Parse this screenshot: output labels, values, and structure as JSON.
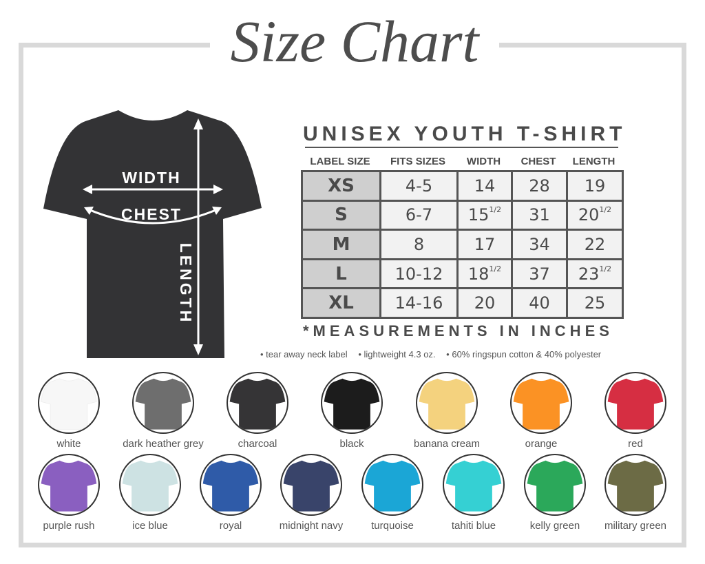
{
  "title": "Size Chart",
  "shirt_labels": {
    "width": "WIDTH",
    "chest": "CHEST",
    "length": "LENGTH"
  },
  "table": {
    "title": "UNISEX YOUTH T-SHIRT",
    "headers": [
      "LABEL SIZE",
      "FITS SIZES",
      "WIDTH",
      "CHEST",
      "LENGTH"
    ],
    "rows": [
      [
        {
          "v": "XS"
        },
        {
          "v": "4-5"
        },
        {
          "v": "14"
        },
        {
          "v": "28"
        },
        {
          "v": "19"
        }
      ],
      [
        {
          "v": "S"
        },
        {
          "v": "6-7"
        },
        {
          "v": "15",
          "frac": "1/2"
        },
        {
          "v": "31"
        },
        {
          "v": "20",
          "frac": "1/2"
        }
      ],
      [
        {
          "v": "M"
        },
        {
          "v": "8"
        },
        {
          "v": "17"
        },
        {
          "v": "34"
        },
        {
          "v": "22"
        }
      ],
      [
        {
          "v": "L"
        },
        {
          "v": "10-12"
        },
        {
          "v": "18",
          "frac": "1/2"
        },
        {
          "v": "37"
        },
        {
          "v": "23",
          "frac": "1/2"
        }
      ],
      [
        {
          "v": "XL"
        },
        {
          "v": "14-16"
        },
        {
          "v": "20"
        },
        {
          "v": "40"
        },
        {
          "v": "25"
        }
      ]
    ],
    "note": "*MEASUREMENTS IN INCHES"
  },
  "features": [
    "• tear away neck label",
    "• lightweight 4.3 oz.",
    "• 60% ringspun cotton & 40% polyester"
  ],
  "colors": {
    "frame": "#d9d9d9",
    "text": "#4a4a4a",
    "label_cell": "#cfcfcf",
    "cell": "#f2f2f2",
    "main_shirt": "#333335"
  },
  "swatches": [
    {
      "name": "white",
      "color": "#f7f7f7"
    },
    {
      "name": "dark heather grey",
      "color": "#6e6e6e"
    },
    {
      "name": "charcoal",
      "color": "#353436"
    },
    {
      "name": "black",
      "color": "#1c1c1c"
    },
    {
      "name": "banana cream",
      "color": "#f4d27e"
    },
    {
      "name": "orange",
      "color": "#fb9224"
    },
    {
      "name": "red",
      "color": "#d62e42"
    },
    {
      "name": "purple rush",
      "color": "#8a5fc0"
    },
    {
      "name": "ice blue",
      "color": "#cde2e3"
    },
    {
      "name": "royal",
      "color": "#2f5ba8"
    },
    {
      "name": "midnight navy",
      "color": "#39446a"
    },
    {
      "name": "turquoise",
      "color": "#1ba6d6"
    },
    {
      "name": "tahiti blue",
      "color": "#35d0d3"
    },
    {
      "name": "kelly green",
      "color": "#2ba85a"
    },
    {
      "name": "military green",
      "color": "#6c6b45"
    }
  ]
}
